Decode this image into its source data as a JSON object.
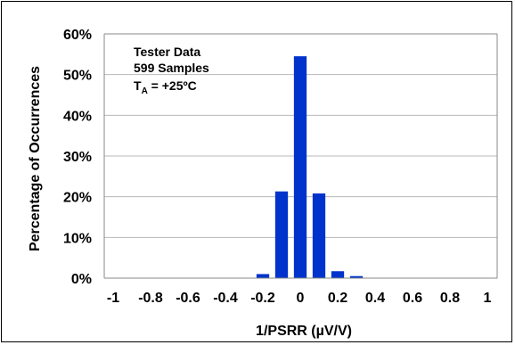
{
  "chart_data": {
    "type": "bar",
    "x": [
      -0.2,
      -0.1,
      0,
      0.1,
      0.2,
      0.3
    ],
    "values": [
      1.0,
      21.3,
      54.5,
      20.8,
      1.7,
      0.5
    ],
    "xlim": [
      -1,
      1
    ],
    "ylim": [
      0,
      60
    ],
    "x_ticks": [
      "-1",
      "-0.8",
      "-0.6",
      "-0.4",
      "-0.2",
      "0",
      "0.2",
      "0.4",
      "0.6",
      "0.8",
      "1"
    ],
    "y_ticks": [
      "0%",
      "10%",
      "20%",
      "30%",
      "40%",
      "50%",
      "60%"
    ],
    "xlabel": "1/PSRR (µV/V)",
    "ylabel": "Percentage of Occurrences",
    "annotation": {
      "line1": "Tester Data",
      "line2": "599 Samples",
      "line3_main": "T",
      "line3_sub": "A",
      "line3_rest": " = +25ºC"
    },
    "grid": true,
    "bar_color": "#0033CC",
    "grid_color": "#B8B8B8"
  }
}
